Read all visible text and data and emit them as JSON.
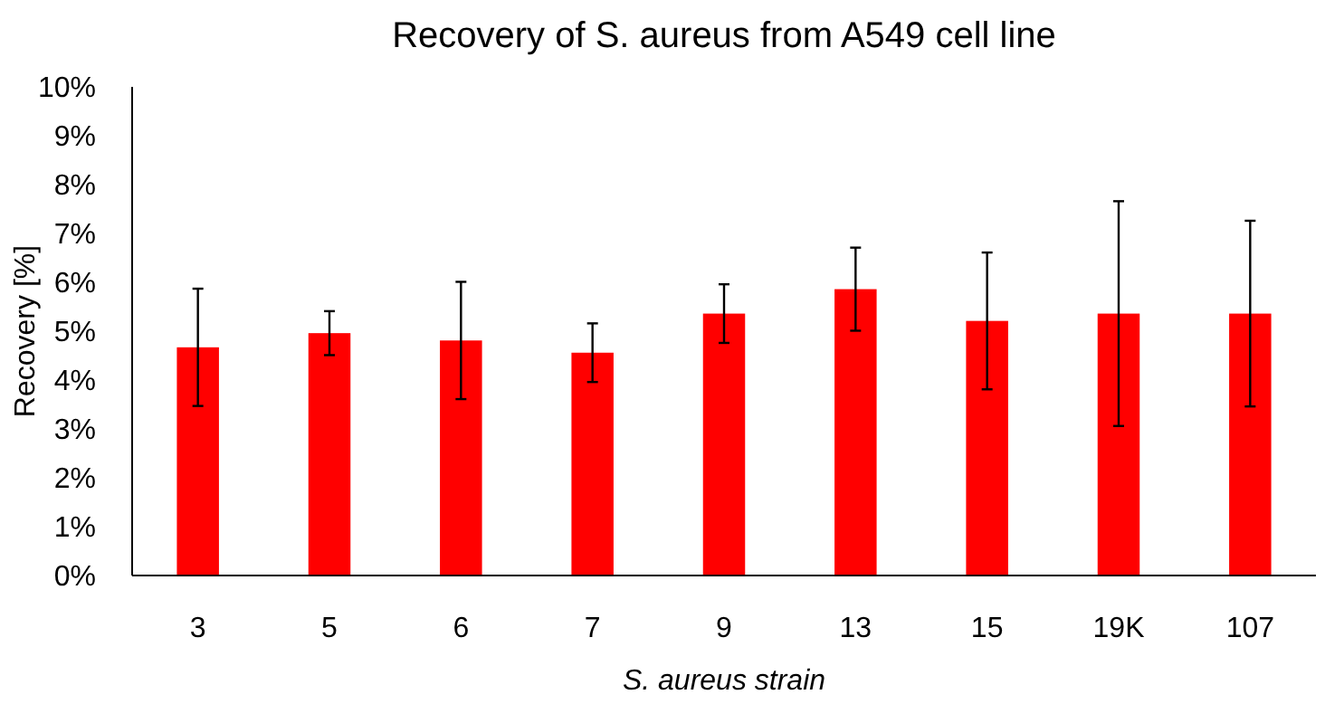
{
  "chart_data": {
    "type": "bar",
    "title": "Recovery of S. aureus from A549 cell line",
    "xlabel": "S. aureus strain",
    "ylabel": "Recovery [%]",
    "categories": [
      "3",
      "5",
      "6",
      "7",
      "9",
      "13",
      "15",
      "19K",
      "107"
    ],
    "values": [
      4.67,
      4.96,
      4.81,
      4.56,
      5.36,
      5.86,
      5.21,
      5.36,
      5.36
    ],
    "errors": [
      1.2,
      0.45,
      1.2,
      0.6,
      0.6,
      0.85,
      1.4,
      2.3,
      1.9
    ],
    "color": "#ff0000",
    "ylim": [
      0,
      10
    ],
    "yticks": [
      {
        "value": 0,
        "label": "0%"
      },
      {
        "value": 1,
        "label": "1%"
      },
      {
        "value": 2,
        "label": "2%"
      },
      {
        "value": 3,
        "label": "3%"
      },
      {
        "value": 4,
        "label": "4%"
      },
      {
        "value": 5,
        "label": "5%"
      },
      {
        "value": 6,
        "label": "6%"
      },
      {
        "value": 7,
        "label": "7%"
      },
      {
        "value": 8,
        "label": "8%"
      },
      {
        "value": 9,
        "label": "9%"
      },
      {
        "value": 10,
        "label": "10%"
      }
    ],
    "grid": false
  }
}
